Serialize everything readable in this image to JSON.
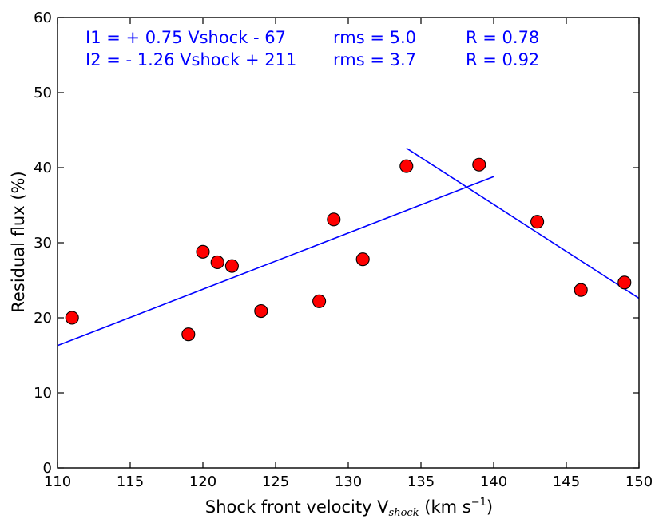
{
  "chart_data": {
    "type": "scatter",
    "title": "",
    "xlabel": {
      "main": "Shock front velocity V",
      "subscript": "shock",
      "unit_open": " (km s",
      "unit_sup": "−1",
      "unit_close": ")"
    },
    "ylabel": "Residual flux (%)",
    "xlim": [
      110,
      150
    ],
    "ylim": [
      0,
      60
    ],
    "x_ticks": [
      "110",
      "115",
      "120",
      "125",
      "130",
      "135",
      "140",
      "145",
      "150"
    ],
    "y_ticks": [
      "0",
      "10",
      "20",
      "30",
      "40",
      "50",
      "60"
    ],
    "grid": false,
    "legend": "none",
    "points": [
      {
        "x": 111,
        "y": 20.0
      },
      {
        "x": 119,
        "y": 17.8
      },
      {
        "x": 120,
        "y": 28.8
      },
      {
        "x": 121,
        "y": 27.4
      },
      {
        "x": 122,
        "y": 26.9
      },
      {
        "x": 124,
        "y": 20.9
      },
      {
        "x": 128,
        "y": 22.2
      },
      {
        "x": 129,
        "y": 33.1
      },
      {
        "x": 131,
        "y": 27.8
      },
      {
        "x": 134,
        "y": 40.2
      },
      {
        "x": 139,
        "y": 40.4
      },
      {
        "x": 143,
        "y": 32.8
      },
      {
        "x": 146,
        "y": 23.7
      },
      {
        "x": 149,
        "y": 24.7
      }
    ],
    "fit_lines": [
      {
        "x": [
          110,
          140
        ],
        "y": [
          16.3,
          38.8
        ]
      },
      {
        "x": [
          134,
          150
        ],
        "y": [
          42.6,
          22.6
        ]
      }
    ],
    "annotations": [
      {
        "equation": "I1 = + 0.75 Vshock - 67",
        "rms": "rms = 5.0",
        "r": "R = 0.78"
      },
      {
        "equation": "I2 = - 1.26 Vshock + 211",
        "rms": "rms = 3.7",
        "r": "R = 0.92"
      }
    ],
    "colors": {
      "marker_fill": "#ff0000",
      "marker_edge": "#000000",
      "fit_line": "#0000ff",
      "annotation_text": "#0000ff",
      "axes": "#000000"
    }
  }
}
